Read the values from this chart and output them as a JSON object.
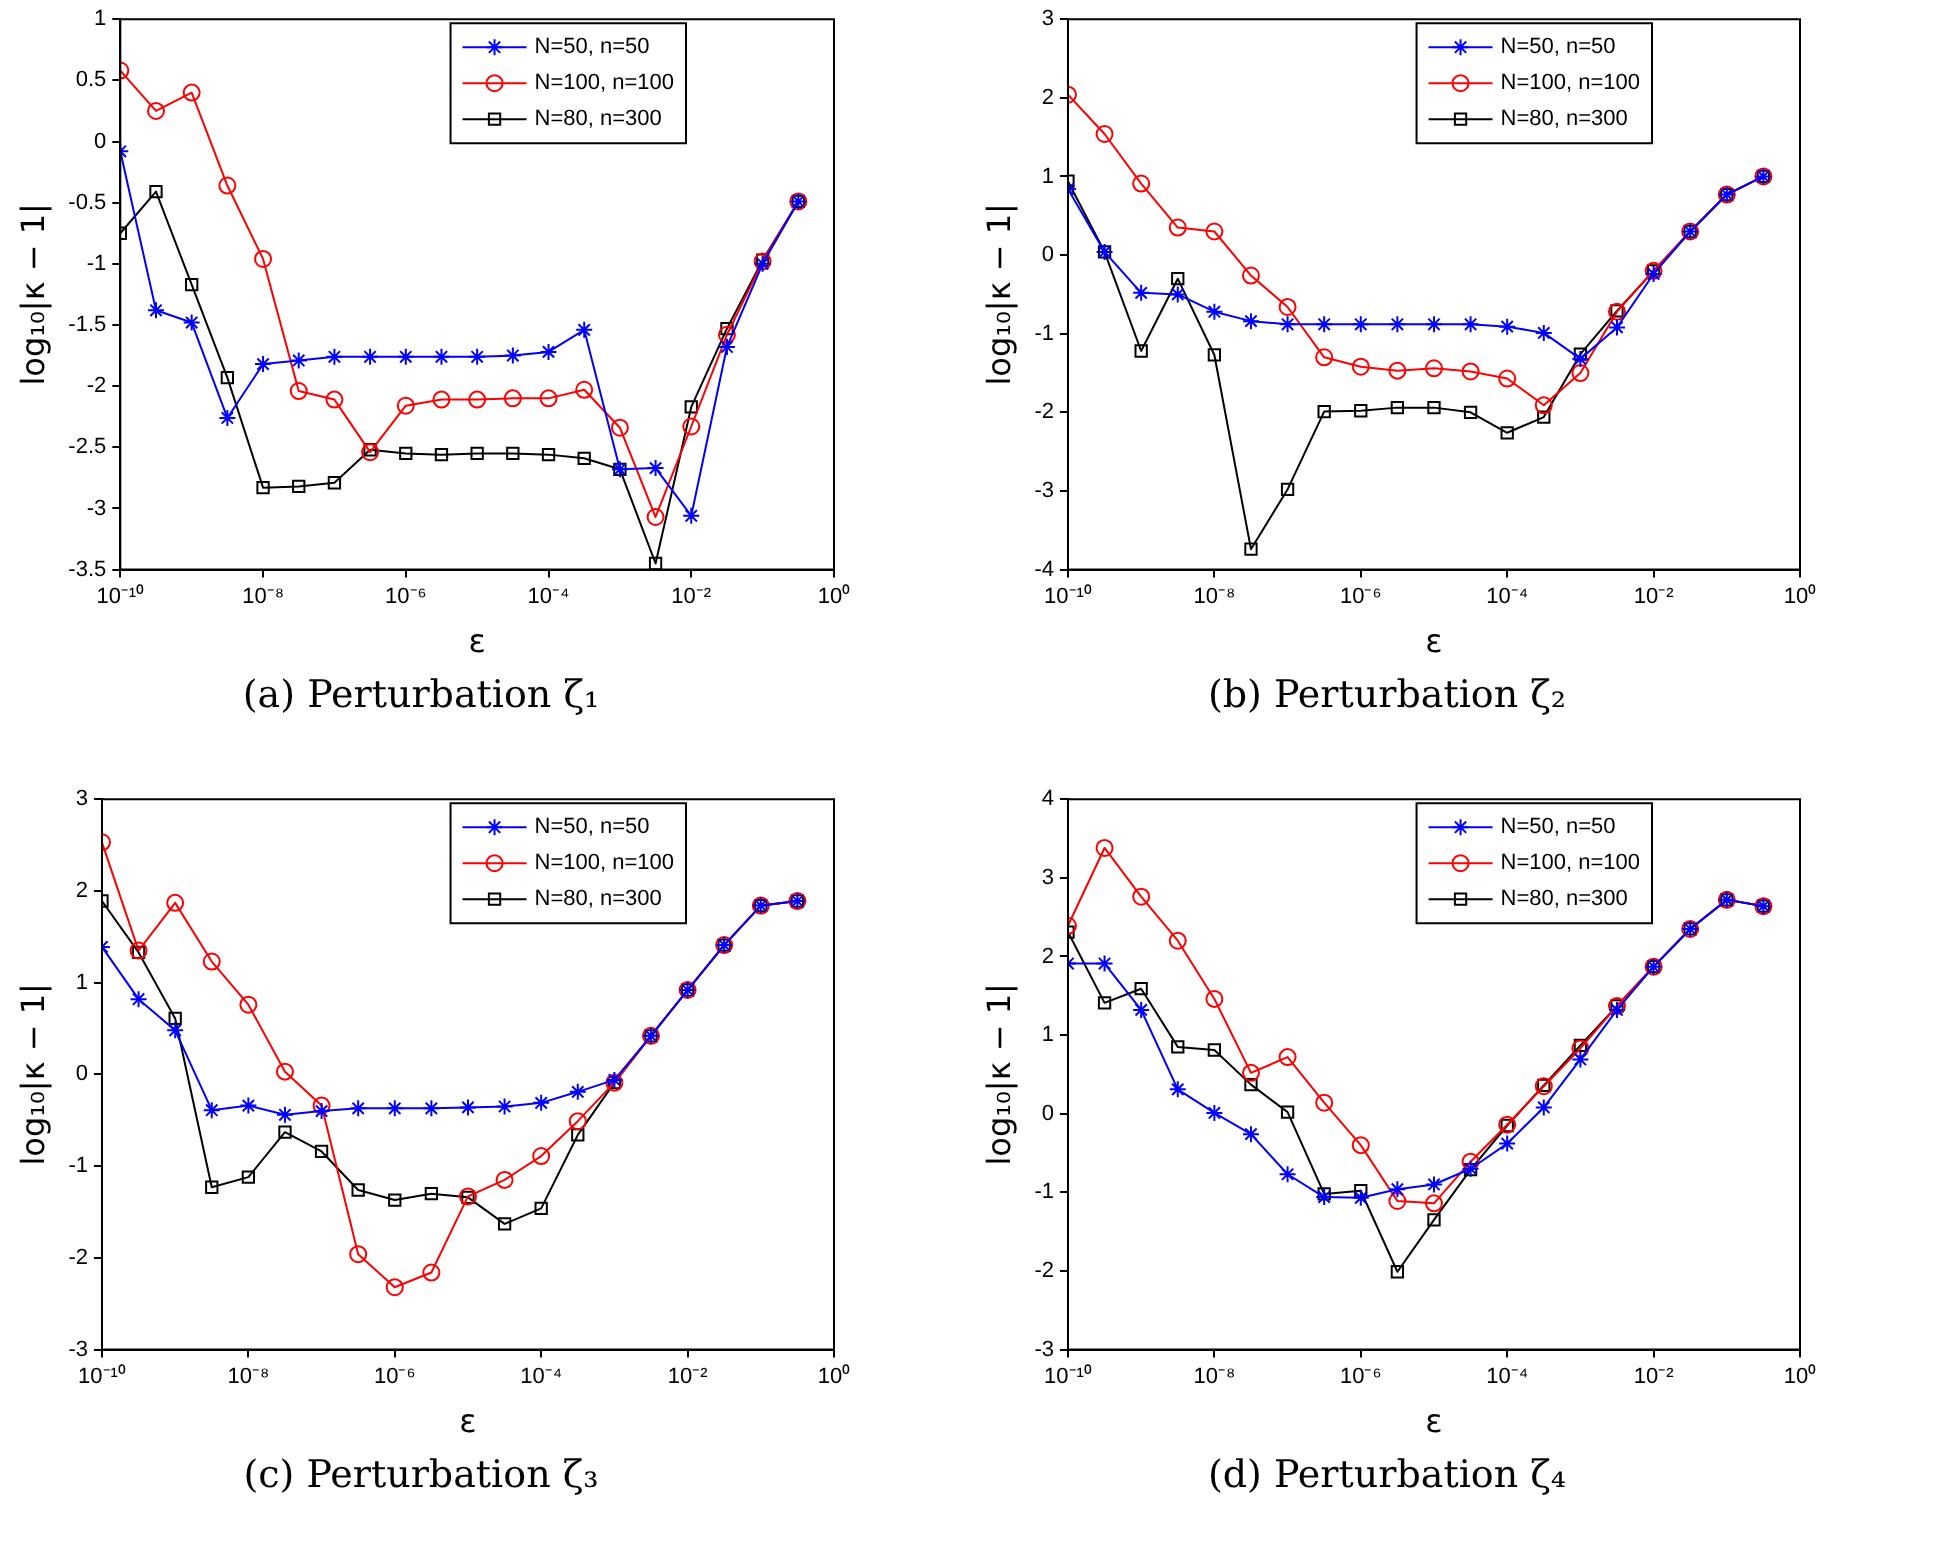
{
  "chart_data": [
    {
      "type": "line",
      "title": "(a) Perturbation ζ₁",
      "xlabel": "ε",
      "ylabel": "log₁₀|κ − 1|",
      "log": "x",
      "grid": false,
      "legend": "top right",
      "line_style": "solid",
      "x": [
        1e-10,
        3.162e-10,
        1e-09,
        3.162e-09,
        1e-08,
        3.162e-08,
        1e-07,
        3.162e-07,
        1e-06,
        3.162e-06,
        1e-05,
        3.162e-05,
        0.0001,
        0.0003162,
        0.001,
        0.003162,
        0.01,
        0.03162,
        0.1,
        0.3162
      ],
      "xlim": [
        1e-10,
        1
      ],
      "xticks": [
        {
          "value": 1e-10,
          "label": "10⁻¹⁰"
        },
        {
          "value": 1e-08,
          "label": "10⁻⁸"
        },
        {
          "value": 1e-06,
          "label": "10⁻⁶"
        },
        {
          "value": 0.0001,
          "label": "10⁻⁴"
        },
        {
          "value": 0.01,
          "label": "10⁻²"
        },
        {
          "value": 1,
          "label": "10⁰"
        }
      ],
      "ylim": [
        -3.5,
        1
      ],
      "yticks": [
        -3.5,
        -3,
        -2.5,
        -2,
        -1.5,
        -1,
        -0.5,
        0,
        0.5,
        1
      ],
      "series": [
        {
          "name": "N=50, n=50",
          "color": "#0000ff",
          "marker": "cross",
          "values": [
            -0.08,
            -1.38,
            -1.48,
            -2.26,
            -1.82,
            -1.79,
            -1.76,
            -1.76,
            -1.76,
            -1.76,
            -1.76,
            -1.75,
            -1.72,
            -1.54,
            -2.68,
            -2.67,
            -3.06,
            -1.68,
            -1.0,
            -0.49
          ]
        },
        {
          "name": "N=100, n=100",
          "color": "#ff0000",
          "marker": "circle",
          "values": [
            0.58,
            0.25,
            0.4,
            -0.36,
            -0.96,
            -2.04,
            -2.11,
            -2.54,
            -2.16,
            -2.11,
            -2.11,
            -2.1,
            -2.1,
            -2.03,
            -2.34,
            -3.07,
            -2.33,
            -1.58,
            -0.98,
            -0.49
          ]
        },
        {
          "name": "N=80, n=300",
          "color": "#000000",
          "marker": "square",
          "values": [
            -0.75,
            -0.41,
            -1.17,
            -1.93,
            -2.83,
            -2.82,
            -2.79,
            -2.52,
            -2.55,
            -2.56,
            -2.55,
            -2.55,
            -2.56,
            -2.59,
            -2.68,
            -3.45,
            -2.17,
            -1.53,
            -0.97,
            -0.49
          ]
        }
      ]
    },
    {
      "type": "line",
      "title": "(b) Perturbation ζ₂",
      "xlabel": "ε",
      "ylabel": "log₁₀|κ − 1|",
      "log": "x",
      "grid": false,
      "legend": "top right",
      "line_style": "solid",
      "x": [
        1e-10,
        3.162e-10,
        1e-09,
        3.162e-09,
        1e-08,
        3.162e-08,
        1e-07,
        3.162e-07,
        1e-06,
        3.162e-06,
        1e-05,
        3.162e-05,
        0.0001,
        0.0003162,
        0.001,
        0.003162,
        0.01,
        0.03162,
        0.1,
        0.3162
      ],
      "xlim": [
        1e-10,
        1
      ],
      "xticks": [
        {
          "value": 1e-10,
          "label": "10⁻¹⁰"
        },
        {
          "value": 1e-08,
          "label": "10⁻⁸"
        },
        {
          "value": 1e-06,
          "label": "10⁻⁶"
        },
        {
          "value": 0.0001,
          "label": "10⁻⁴"
        },
        {
          "value": 0.01,
          "label": "10⁻²"
        },
        {
          "value": 1,
          "label": "10⁰"
        }
      ],
      "ylim": [
        -4,
        3
      ],
      "yticks": [
        -4,
        -3,
        -2,
        -1,
        0,
        1,
        2,
        3
      ],
      "series": [
        {
          "name": "N=50, n=50",
          "color": "#0000ff",
          "marker": "cross",
          "values": [
            0.84,
            0.04,
            -0.48,
            -0.5,
            -0.72,
            -0.84,
            -0.88,
            -0.88,
            -0.88,
            -0.88,
            -0.88,
            -0.88,
            -0.91,
            -0.99,
            -1.32,
            -0.92,
            -0.24,
            0.3,
            0.77,
            1.0
          ]
        },
        {
          "name": "N=100, n=100",
          "color": "#ff0000",
          "marker": "circle",
          "values": [
            2.04,
            1.54,
            0.91,
            0.35,
            0.3,
            -0.26,
            -0.66,
            -1.3,
            -1.42,
            -1.47,
            -1.44,
            -1.48,
            -1.57,
            -1.91,
            -1.5,
            -0.72,
            -0.2,
            0.3,
            0.77,
            1.0
          ]
        },
        {
          "name": "N=80, n=300",
          "color": "#000000",
          "marker": "square",
          "values": [
            0.94,
            0.04,
            -1.22,
            -0.3,
            -1.27,
            -3.74,
            -2.98,
            -1.99,
            -1.98,
            -1.94,
            -1.94,
            -2.0,
            -2.26,
            -2.06,
            -1.26,
            -0.71,
            -0.2,
            0.3,
            0.77,
            1.0
          ]
        }
      ]
    },
    {
      "type": "line",
      "title": "(c) Perturbation ζ₃",
      "xlabel": "ε",
      "ylabel": "log₁₀|κ − 1|",
      "log": "x",
      "grid": false,
      "legend": "top right",
      "line_style": "solid",
      "x": [
        1e-10,
        3.162e-10,
        1e-09,
        3.162e-09,
        1e-08,
        3.162e-08,
        1e-07,
        3.162e-07,
        1e-06,
        3.162e-06,
        1e-05,
        3.162e-05,
        0.0001,
        0.0003162,
        0.001,
        0.003162,
        0.01,
        0.03162,
        0.1,
        0.3162
      ],
      "xlim": [
        1e-10,
        1
      ],
      "xticks": [
        {
          "value": 1e-10,
          "label": "10⁻¹⁰"
        },
        {
          "value": 1e-08,
          "label": "10⁻⁸"
        },
        {
          "value": 1e-06,
          "label": "10⁻⁶"
        },
        {
          "value": 0.0001,
          "label": "10⁻⁴"
        },
        {
          "value": 0.01,
          "label": "10⁻²"
        },
        {
          "value": 1,
          "label": "10⁰"
        }
      ],
      "ylim": [
        -3,
        3
      ],
      "yticks": [
        -3,
        -2,
        -1,
        0,
        1,
        2,
        3
      ],
      "series": [
        {
          "name": "N=50, n=50",
          "color": "#0000ff",
          "marker": "cross",
          "values": [
            1.39,
            0.82,
            0.48,
            -0.39,
            -0.34,
            -0.44,
            -0.4,
            -0.37,
            -0.37,
            -0.37,
            -0.36,
            -0.35,
            -0.31,
            -0.19,
            -0.06,
            0.42,
            0.92,
            1.41,
            1.84,
            1.89
          ]
        },
        {
          "name": "N=100, n=100",
          "color": "#ff0000",
          "marker": "circle",
          "values": [
            2.53,
            1.35,
            1.87,
            1.23,
            0.76,
            0.03,
            -0.34,
            -1.96,
            -2.32,
            -2.16,
            -1.33,
            -1.15,
            -0.89,
            -0.51,
            -0.09,
            0.42,
            0.92,
            1.41,
            1.84,
            1.89
          ]
        },
        {
          "name": "N=80, n=300",
          "color": "#000000",
          "marker": "square",
          "values": [
            1.89,
            1.33,
            0.61,
            -1.23,
            -1.12,
            -0.63,
            -0.84,
            -1.26,
            -1.37,
            -1.3,
            -1.34,
            -1.63,
            -1.46,
            -0.66,
            -0.09,
            0.42,
            0.92,
            1.41,
            1.84,
            1.89
          ]
        }
      ]
    },
    {
      "type": "line",
      "title": "(d) Perturbation ζ₄",
      "xlabel": "ε",
      "ylabel": "log₁₀|κ − 1|",
      "log": "x",
      "grid": false,
      "legend": "top right",
      "line_style": "solid",
      "x": [
        1e-10,
        3.162e-10,
        1e-09,
        3.162e-09,
        1e-08,
        3.162e-08,
        1e-07,
        3.162e-07,
        1e-06,
        3.162e-06,
        1e-05,
        3.162e-05,
        0.0001,
        0.0003162,
        0.001,
        0.003162,
        0.01,
        0.03162,
        0.1,
        0.3162
      ],
      "xlim": [
        1e-10,
        1
      ],
      "xticks": [
        {
          "value": 1e-10,
          "label": "10⁻¹⁰"
        },
        {
          "value": 1e-08,
          "label": "10⁻⁸"
        },
        {
          "value": 1e-06,
          "label": "10⁻⁶"
        },
        {
          "value": 0.0001,
          "label": "10⁻⁴"
        },
        {
          "value": 0.01,
          "label": "10⁻²"
        },
        {
          "value": 1,
          "label": "10⁰"
        }
      ],
      "ylim": [
        -3,
        4
      ],
      "yticks": [
        -3,
        -2,
        -1,
        0,
        1,
        2,
        3,
        4
      ],
      "series": [
        {
          "name": "N=50, n=50",
          "color": "#0000ff",
          "marker": "cross",
          "values": [
            1.91,
            1.91,
            1.32,
            0.31,
            0.01,
            -0.26,
            -0.77,
            -1.06,
            -1.07,
            -0.96,
            -0.9,
            -0.7,
            -0.38,
            0.08,
            0.69,
            1.32,
            1.87,
            2.35,
            2.72,
            2.64
          ]
        },
        {
          "name": "N=100, n=100",
          "color": "#ff0000",
          "marker": "circle",
          "values": [
            2.39,
            3.38,
            2.76,
            2.2,
            1.46,
            0.52,
            0.72,
            0.14,
            -0.4,
            -1.11,
            -1.14,
            -0.61,
            -0.14,
            0.35,
            0.83,
            1.37,
            1.87,
            2.35,
            2.72,
            2.64
          ]
        },
        {
          "name": "N=80, n=300",
          "color": "#000000",
          "marker": "square",
          "values": [
            2.31,
            1.41,
            1.59,
            0.85,
            0.81,
            0.37,
            0.02,
            -1.02,
            -0.98,
            -2.01,
            -1.35,
            -0.71,
            -0.15,
            0.36,
            0.87,
            1.37,
            1.87,
            2.35,
            2.72,
            2.64
          ]
        }
      ]
    }
  ]
}
